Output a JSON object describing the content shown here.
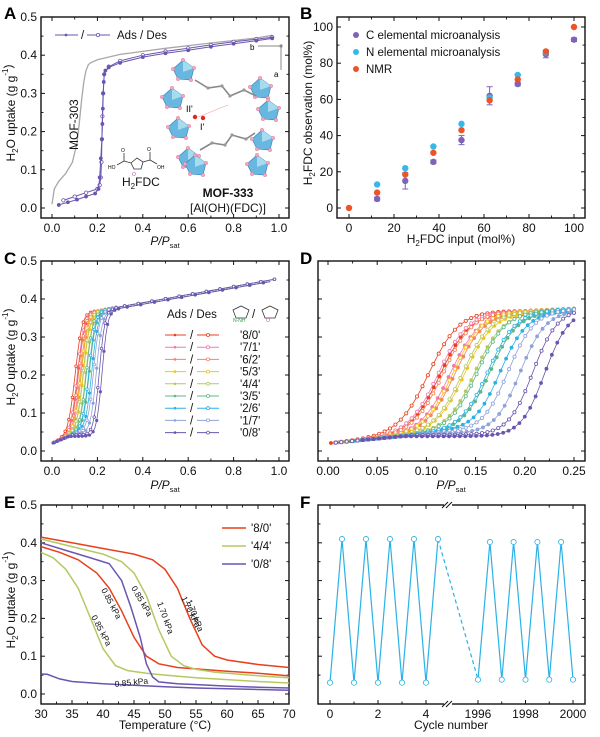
{
  "figure": {
    "panel_labels": [
      "A",
      "B",
      "C",
      "D",
      "E",
      "F"
    ]
  },
  "chart_data": [
    {
      "panel": "A",
      "type": "line",
      "xlabel": "P/Psat",
      "ylabel": "H2O uptake (g g-1)",
      "xlim": [
        0,
        1.0
      ],
      "ylim": [
        0,
        0.5
      ],
      "xticks": [
        "0.0",
        "0.2",
        "0.4",
        "0.6",
        "0.8",
        "1.0"
      ],
      "yticks": [
        "0.0",
        "0.1",
        "0.2",
        "0.3",
        "0.4",
        "0.5"
      ],
      "legend": {
        "label": "Ads / Des",
        "position": "top-left"
      },
      "annotations": [
        "MOF-303",
        "H2FDC",
        "MOF-333",
        "[Al(OH)(FDC)]",
        "II'",
        "I'",
        "a",
        "b"
      ],
      "colors": {
        "mof333": "#6a55b0",
        "mof303": "#a8a8a8"
      },
      "series": [
        {
          "name": "MOF-333 Ads",
          "marker": "filled",
          "x": [
            0.03,
            0.07,
            0.11,
            0.15,
            0.19,
            0.205,
            0.21,
            0.215,
            0.22,
            0.222,
            0.224,
            0.226,
            0.228,
            0.23,
            0.235,
            0.25,
            0.3,
            0.4,
            0.5,
            0.6,
            0.7,
            0.8,
            0.9,
            0.97
          ],
          "y": [
            0.008,
            0.015,
            0.022,
            0.03,
            0.038,
            0.05,
            0.08,
            0.13,
            0.18,
            0.22,
            0.26,
            0.3,
            0.33,
            0.35,
            0.36,
            0.368,
            0.38,
            0.395,
            0.405,
            0.413,
            0.422,
            0.43,
            0.438,
            0.444
          ]
        },
        {
          "name": "MOF-333 Des",
          "marker": "open",
          "x": [
            0.97,
            0.9,
            0.8,
            0.7,
            0.6,
            0.5,
            0.4,
            0.3,
            0.25,
            0.23,
            0.225,
            0.222,
            0.22,
            0.218,
            0.215,
            0.21,
            0.2,
            0.15,
            0.1,
            0.05
          ],
          "y": [
            0.447,
            0.442,
            0.435,
            0.427,
            0.418,
            0.41,
            0.4,
            0.385,
            0.37,
            0.35,
            0.3,
            0.24,
            0.18,
            0.12,
            0.08,
            0.06,
            0.05,
            0.04,
            0.03,
            0.02
          ]
        },
        {
          "name": "MOF-303",
          "marker": "none",
          "x": [
            0.0,
            0.01,
            0.03,
            0.06,
            0.09,
            0.11,
            0.12,
            0.13,
            0.14,
            0.15,
            0.16,
            0.17,
            0.2,
            0.3,
            0.5,
            0.7,
            0.9,
            0.97
          ],
          "y": [
            0.01,
            0.05,
            0.07,
            0.09,
            0.12,
            0.17,
            0.22,
            0.28,
            0.33,
            0.36,
            0.375,
            0.38,
            0.388,
            0.402,
            0.418,
            0.432,
            0.445,
            0.452
          ]
        }
      ]
    },
    {
      "panel": "B",
      "type": "scatter",
      "xlabel": "H2FDC input (mol%)",
      "ylabel": "H2FDC observation (mol%)",
      "xlim": [
        -5,
        105
      ],
      "ylim": [
        -5,
        105
      ],
      "xticks": [
        "0",
        "20",
        "40",
        "60",
        "80",
        "100"
      ],
      "yticks": [
        "0",
        "20",
        "40",
        "60",
        "80",
        "100"
      ],
      "legend_position": "top-left",
      "series": [
        {
          "name": "C elemental microanalysis",
          "color": "#7e63b8",
          "x": [
            12.5,
            25,
            37.5,
            50,
            62.5,
            75,
            87.5,
            100
          ],
          "y": [
            5,
            15,
            25.5,
            37.5,
            62,
            68.5,
            85,
            93
          ],
          "err": [
            1,
            4.5,
            1,
            2.5,
            5,
            1,
            2,
            1
          ]
        },
        {
          "name": "N elemental microanalysis",
          "color": "#36b8ea",
          "x": [
            12.5,
            25,
            37.5,
            50,
            62.5,
            75,
            87.5
          ],
          "y": [
            13,
            22,
            34,
            46.5,
            61,
            73.5,
            86
          ]
        },
        {
          "name": "NMR",
          "color": "#ec5428",
          "x": [
            0,
            12.5,
            25,
            37.5,
            50,
            62.5,
            75,
            87.5,
            100
          ],
          "y": [
            0,
            8.5,
            18.5,
            30.5,
            43,
            59.5,
            71,
            86.5,
            100
          ]
        }
      ]
    },
    {
      "panel": "C",
      "type": "line",
      "xlabel": "P/Psat",
      "ylabel": "H2O uptake (g g-1)",
      "xlim": [
        0,
        1.0
      ],
      "ylim": [
        0,
        0.5
      ],
      "xticks": [
        "0.0",
        "0.2",
        "0.4",
        "0.6",
        "0.8",
        "1.0"
      ],
      "yticks": [
        "0.0",
        "0.1",
        "0.2",
        "0.3",
        "0.4",
        "0.5"
      ],
      "legend_title": "Ads / Des",
      "legend_linker_left": "N-NH",
      "legend_linker_right": "O",
      "series": [
        {
          "name": "'8/0'",
          "color": "#e8401c",
          "step_center": 0.115
        },
        {
          "name": "'7/1'",
          "color": "#f27ab0",
          "step_center": 0.125
        },
        {
          "name": "'6/2'",
          "color": "#f4845f",
          "step_center": 0.13
        },
        {
          "name": "'5/3'",
          "color": "#f6c21a",
          "step_center": 0.14
        },
        {
          "name": "'4/4'",
          "color": "#b4c963",
          "step_center": 0.15
        },
        {
          "name": "'3/5'",
          "color": "#5cb88a",
          "step_center": 0.165
        },
        {
          "name": "'2/6'",
          "color": "#2bb1e6",
          "step_center": 0.175
        },
        {
          "name": "'1/7'",
          "color": "#8fa2d9",
          "step_center": 0.195
        },
        {
          "name": "'0/8'",
          "color": "#6a55b0",
          "step_center": 0.22
        }
      ]
    },
    {
      "panel": "D",
      "type": "line",
      "xlabel": "P/Psat",
      "xlim": [
        0,
        0.25
      ],
      "ylim": [
        0,
        0.5
      ],
      "xticks": [
        "0.00",
        "0.05",
        "0.10",
        "0.15",
        "0.20",
        "0.25"
      ],
      "note": "zoom of panel C, same series"
    },
    {
      "panel": "E",
      "type": "line",
      "xlabel": "Temperature (°C)",
      "ylabel": "H2O uptake (g g-1)",
      "xlim": [
        30,
        70
      ],
      "ylim": [
        0,
        0.5
      ],
      "xticks": [
        "30",
        "35",
        "40",
        "45",
        "50",
        "55",
        "60",
        "65",
        "70"
      ],
      "yticks": [
        "0.0",
        "0.1",
        "0.2",
        "0.3",
        "0.4",
        "0.5"
      ],
      "legend_position": "top-right",
      "series": [
        {
          "name": "'8/0'",
          "color": "#e8401c",
          "pressure": "1.70 kPa",
          "x": [
            30,
            35,
            40,
            45,
            48,
            50,
            52,
            54,
            56,
            58,
            60,
            65,
            70
          ],
          "y": [
            0.415,
            0.4,
            0.385,
            0.37,
            0.355,
            0.33,
            0.28,
            0.2,
            0.13,
            0.1,
            0.09,
            0.078,
            0.07
          ]
        },
        {
          "name": "'8/0'",
          "color": "#e8401c",
          "pressure": "0.85 kPa",
          "x": [
            30,
            33,
            36,
            39,
            41,
            43,
            45,
            47,
            49,
            52,
            56,
            60,
            65,
            70
          ],
          "y": [
            0.39,
            0.375,
            0.355,
            0.32,
            0.28,
            0.22,
            0.15,
            0.1,
            0.08,
            0.07,
            0.065,
            0.06,
            0.055,
            0.048
          ]
        },
        {
          "name": "'4/4'",
          "color": "#b4c963",
          "pressure": "1.70 kPa",
          "x": [
            30,
            35,
            40,
            43,
            45,
            47,
            49,
            51,
            53,
            55,
            58,
            62,
            66,
            70
          ],
          "y": [
            0.41,
            0.39,
            0.37,
            0.35,
            0.32,
            0.26,
            0.17,
            0.1,
            0.075,
            0.065,
            0.058,
            0.052,
            0.047,
            0.043
          ]
        },
        {
          "name": "'4/4'",
          "color": "#b4c963",
          "pressure": "0.85 kPa",
          "x": [
            30,
            32,
            34,
            36,
            38,
            40,
            42,
            44,
            47,
            50,
            55,
            60,
            65,
            70
          ],
          "y": [
            0.375,
            0.36,
            0.33,
            0.28,
            0.2,
            0.12,
            0.075,
            0.062,
            0.055,
            0.05,
            0.043,
            0.038,
            0.033,
            0.029
          ]
        },
        {
          "name": "'0/8'",
          "color": "#6a55b0",
          "pressure": "1.70 kPa",
          "x": [
            30,
            34,
            38,
            41,
            43,
            44.5,
            46,
            47,
            48,
            49,
            52,
            56,
            60,
            65,
            70
          ],
          "y": [
            0.4,
            0.38,
            0.36,
            0.345,
            0.3,
            0.23,
            0.15,
            0.08,
            0.045,
            0.032,
            0.027,
            0.024,
            0.021,
            0.018,
            0.016
          ]
        },
        {
          "name": "'0/8'",
          "color": "#6a55b0",
          "pressure": "0.85 kPa",
          "x": [
            30,
            31,
            33,
            35,
            40,
            45,
            50,
            55,
            60,
            65,
            70
          ],
          "y": [
            0.053,
            0.052,
            0.04,
            0.033,
            0.027,
            0.023,
            0.019,
            0.016,
            0.014,
            0.012,
            0.01
          ]
        }
      ]
    },
    {
      "panel": "F",
      "type": "line",
      "xlabel": "Cycle number",
      "xticks": [
        "0",
        "2",
        "4",
        "1996",
        "1998",
        "2000"
      ],
      "axis_break": true,
      "color": "#2bb1e6",
      "series": [
        {
          "name": "cycles start",
          "x": [
            0,
            0.5,
            1,
            1.5,
            2,
            2.5,
            3,
            3.5,
            4,
            4.5
          ],
          "y": [
            "low",
            "high",
            "low",
            "high",
            "low",
            "high",
            "low",
            "high",
            "low",
            "high"
          ]
        },
        {
          "name": "cycles end",
          "x": [
            1996,
            1996.5,
            1997,
            1997.5,
            1998,
            1998.5,
            1999,
            1999.5,
            2000
          ],
          "y": [
            "low",
            "high",
            "low",
            "high",
            "low",
            "high",
            "low",
            "high",
            "low"
          ]
        }
      ],
      "levels": {
        "high_start": 0.41,
        "low_start": 0.03,
        "high_end": 0.402,
        "low_end": 0.038
      },
      "ylim": [
        0,
        0.5
      ]
    }
  ]
}
